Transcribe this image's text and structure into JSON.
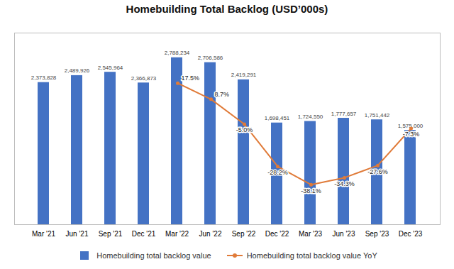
{
  "chart_data": {
    "type": "bar",
    "title": "Homebuilding Total Backlog (USD’000s)",
    "categories": [
      "Mar '21",
      "Jun '21",
      "Sep '21",
      "Dec '21",
      "Mar '22",
      "Jun '22",
      "Sep '22",
      "Dec '22",
      "Mar '23",
      "Jun '23",
      "Sep '23",
      "Dec '23"
    ],
    "series": [
      {
        "name": "Homebuilding total backlog value",
        "type": "bar",
        "color": "#4472C4",
        "values": [
          2373828,
          2489926,
          2545964,
          2366873,
          2788234,
          2706586,
          2419291,
          1698451,
          1724550,
          1777657,
          1751442,
          1575000
        ],
        "value_labels": [
          "2,373,828",
          "2,489,926",
          "2,545,964",
          "2,366,873",
          "2,788,234",
          "2,706,586",
          "2,419,291",
          "1,698,451",
          "1,724,550",
          "1,777,657",
          "1,751,442",
          "1,575,000"
        ]
      },
      {
        "name": "Homebuilding total backlog value YoY",
        "type": "line",
        "axis": "y2",
        "color": "#E07B39",
        "marker": "circle",
        "values": [
          null,
          null,
          null,
          null,
          17.5,
          8.7,
          -5.0,
          -28.2,
          -38.1,
          -34.3,
          -27.6,
          -7.3
        ],
        "value_labels": [
          null,
          null,
          null,
          null,
          "17.5%",
          "8.7%",
          "-5.0%",
          "-28.2%",
          "-38.1%",
          "-34.3%",
          "-27.6%",
          "-7.3%"
        ]
      }
    ],
    "ylim": [
      0,
      3200000
    ],
    "y2lim": [
      -60,
      45
    ],
    "grid": false,
    "legend": "bottom",
    "data_labels": true,
    "tick_labels": "x"
  }
}
